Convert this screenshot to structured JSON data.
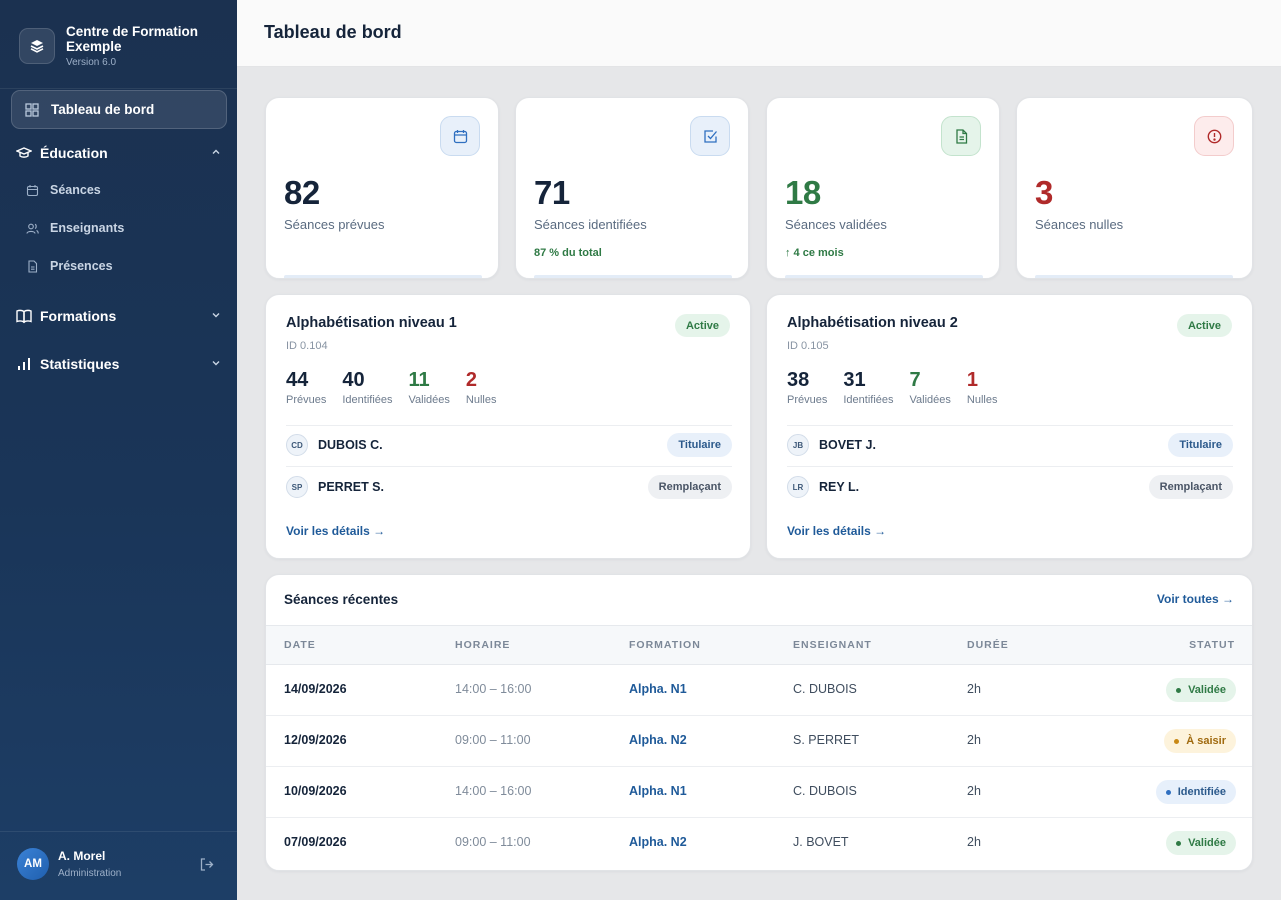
{
  "sidebar": {
    "brand_name": "Centre de Formation Exemple",
    "brand_version": "Version 6.0",
    "active_item": "Tableau de bord",
    "sections": [
      {
        "label": "Éducation",
        "expanded": true,
        "items": [
          {
            "label": "Séances"
          },
          {
            "label": "Enseignants"
          },
          {
            "label": "Présences"
          }
        ]
      },
      {
        "label": "Formations",
        "expanded": false
      },
      {
        "label": "Statistiques",
        "expanded": false
      }
    ],
    "user": {
      "initials": "AM",
      "name": "A. Morel",
      "role": "Administration"
    }
  },
  "header": {
    "title": "Tableau de bord"
  },
  "stats": [
    {
      "value": "82",
      "label": "Séances prévues",
      "sub": "",
      "icon": "calendar-icon",
      "color": "#15243a"
    },
    {
      "value": "71",
      "label": "Séances identifiées",
      "sub": "87 % du total",
      "icon": "check-square-icon",
      "color": "#15243a"
    },
    {
      "value": "18",
      "label": "Séances validées",
      "sub": "↑ 4 ce mois",
      "icon": "document-icon",
      "color": "#2f7a45"
    },
    {
      "value": "3",
      "label": "Séances nulles",
      "sub": "",
      "icon": "alert-circle-icon",
      "color": "#b02a2a"
    }
  ],
  "formations": [
    {
      "title": "Alphabétisation niveau 1",
      "id": "ID 0.104",
      "status": "Active",
      "stats": [
        {
          "value": "44",
          "label": "Prévues"
        },
        {
          "value": "40",
          "label": "Identifiées"
        },
        {
          "value": "11",
          "label": "Validées"
        },
        {
          "value": "2",
          "label": "Nulles"
        }
      ],
      "teachers": [
        {
          "initials": "CD",
          "name": "DUBOIS C.",
          "role": "Titulaire"
        },
        {
          "initials": "SP",
          "name": "PERRET S.",
          "role": "Remplaçant"
        }
      ],
      "link": "Voir les détails →"
    },
    {
      "title": "Alphabétisation niveau 2",
      "id": "ID 0.105",
      "status": "Active",
      "stats": [
        {
          "value": "38",
          "label": "Prévues"
        },
        {
          "value": "31",
          "label": "Identifiées"
        },
        {
          "value": "7",
          "label": "Validées"
        },
        {
          "value": "1",
          "label": "Nulles"
        }
      ],
      "teachers": [
        {
          "initials": "JB",
          "name": "BOVET J.",
          "role": "Titulaire"
        },
        {
          "initials": "LR",
          "name": "REY L.",
          "role": "Remplaçant"
        }
      ],
      "link": "Voir les détails →"
    }
  ],
  "recent": {
    "title": "Séances récentes",
    "link": "Voir toutes →",
    "columns": [
      "DATE",
      "HORAIRE",
      "FORMATION",
      "ENSEIGNANT",
      "DURÉE",
      "STATUT"
    ],
    "rows": [
      {
        "date": "14/09/2026",
        "time": "14:00 – 16:00",
        "formation": "Alpha. N1",
        "teacher": "C. DUBOIS",
        "duration": "2h",
        "status": "Validée"
      },
      {
        "date": "12/09/2026",
        "time": "09:00 – 11:00",
        "formation": "Alpha. N2",
        "teacher": "S. PERRET",
        "duration": "2h",
        "status": "À saisir"
      },
      {
        "date": "10/09/2026",
        "time": "14:00 – 16:00",
        "formation": "Alpha. N1",
        "teacher": "C. DUBOIS",
        "duration": "2h",
        "status": "Identifiée"
      },
      {
        "date": "07/09/2026",
        "time": "09:00 – 11:00",
        "formation": "Alpha. N2",
        "teacher": "J. BOVET",
        "duration": "2h",
        "status": "Validée"
      }
    ]
  },
  "colors": {
    "sidebar": "#1b3150",
    "accent": "#1f5a99",
    "success": "#2f7a45",
    "danger": "#b02a2a",
    "warning": "#c98916"
  }
}
